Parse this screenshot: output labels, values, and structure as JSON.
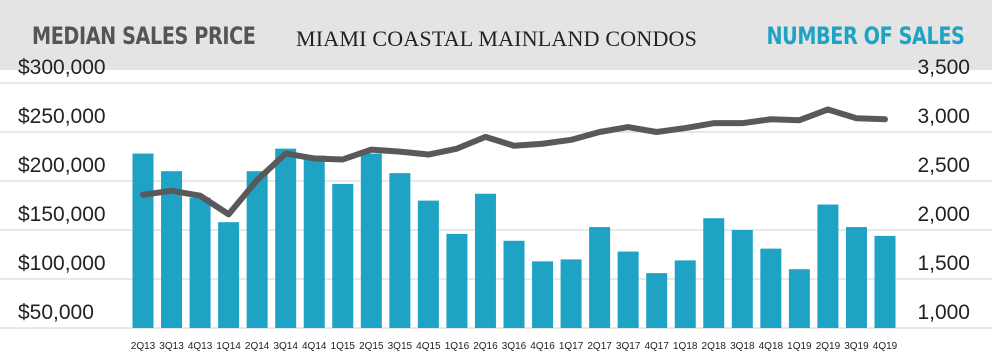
{
  "header": {
    "left_title": "MEDIAN SALES PRICE",
    "center_title": "MIAMI COASTAL MAINLAND CONDOS",
    "right_title": "NUMBER OF SALES"
  },
  "colors": {
    "bar": "#1ea3c4",
    "line": "#595959",
    "left_title": "#555555",
    "right_title": "#1ea3c4"
  },
  "chart_data": {
    "type": "bar",
    "categories": [
      "2Q13",
      "3Q13",
      "4Q13",
      "1Q14",
      "2Q14",
      "3Q14",
      "4Q14",
      "1Q15",
      "2Q15",
      "3Q15",
      "4Q15",
      "1Q16",
      "2Q16",
      "3Q16",
      "4Q16",
      "1Q17",
      "2Q17",
      "3Q17",
      "4Q17",
      "1Q18",
      "2Q18",
      "3Q18",
      "4Q18",
      "1Q19",
      "2Q19",
      "3Q19",
      "4Q19"
    ],
    "series": [
      {
        "type": "bar",
        "axis": "left",
        "values": [
          228000,
          210000,
          183000,
          158000,
          210000,
          233000,
          226000,
          197000,
          228000,
          208000,
          180000,
          146000,
          187000,
          139000,
          118000,
          120000,
          153000,
          128000,
          106000,
          119000,
          162000,
          150000,
          131000,
          110000,
          176000,
          153000,
          144000
        ]
      },
      {
        "type": "line",
        "axis": "right",
        "values": [
          2360,
          2400,
          2350,
          2160,
          2510,
          2780,
          2730,
          2720,
          2820,
          2800,
          2770,
          2830,
          2950,
          2860,
          2880,
          2920,
          3000,
          3050,
          3000,
          3040,
          3090,
          3090,
          3130,
          3120,
          3230,
          3140,
          3130
        ]
      }
    ],
    "y_left": {
      "min": 50000,
      "max": 300000,
      "ticks": [
        "$300,000",
        "$250,000",
        "$200,000",
        "$150,000",
        "$100,000",
        "$50,000"
      ],
      "tick_values": [
        300000,
        250000,
        200000,
        150000,
        100000,
        50000
      ]
    },
    "y_right": {
      "min": 1000,
      "max": 3500,
      "ticks": [
        "3,500",
        "3,000",
        "2,500",
        "2,000",
        "1,500",
        "1,000"
      ],
      "tick_values": [
        3500,
        3000,
        2500,
        2000,
        1500,
        1000
      ]
    },
    "grid": true,
    "legend": "none"
  }
}
